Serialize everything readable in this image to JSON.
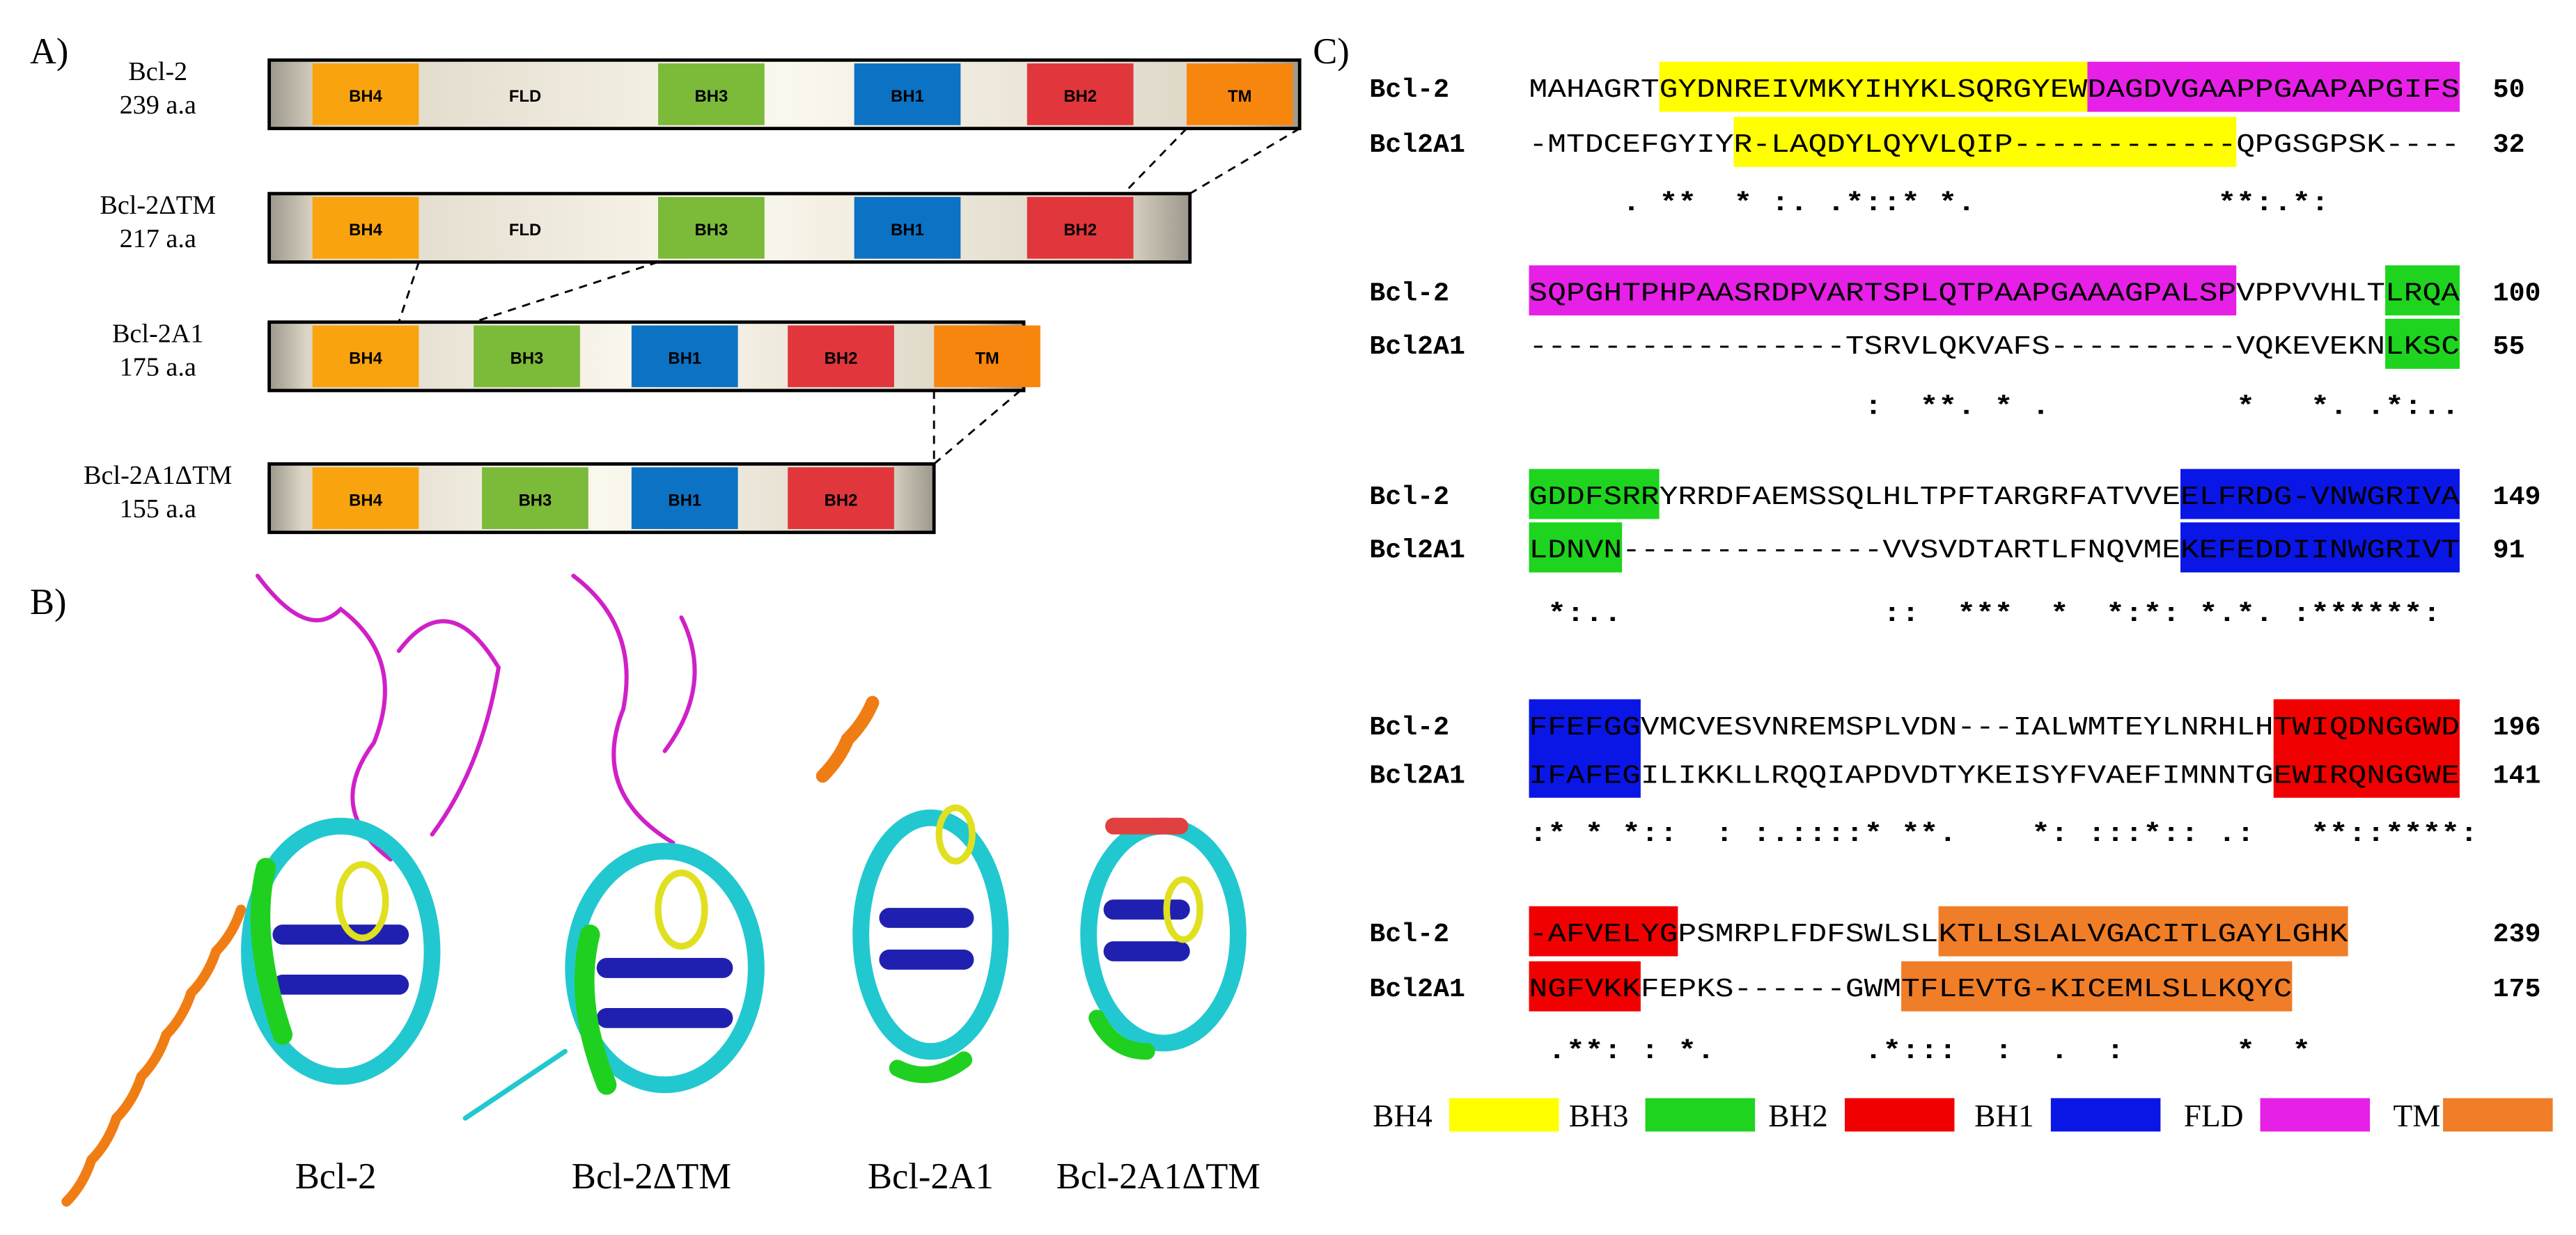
{
  "panel_labels": [
    "A)",
    "B)",
    "C)"
  ],
  "domain_maps": [
    {
      "name": "Bcl-2",
      "length": "239 a.a",
      "domains": [
        "BH4",
        "FLD",
        "BH3",
        "BH1",
        "BH2",
        "TM"
      ]
    },
    {
      "name": "Bcl-2ΔTM",
      "length": "217 a.a",
      "domains": [
        "BH4",
        "FLD",
        "BH3",
        "BH1",
        "BH2"
      ]
    },
    {
      "name": "Bcl-2A1",
      "length": "175 a.a",
      "domains": [
        "BH4",
        "BH3",
        "BH1",
        "BH2",
        "TM"
      ]
    },
    {
      "name": "Bcl-2A1ΔTM",
      "length": "155 a.a",
      "domains": [
        "BH4",
        "BH3",
        "BH1",
        "BH2"
      ]
    }
  ],
  "structures": [
    "Bcl-2",
    "Bcl-2ΔTM",
    "Bcl-2A1",
    "Bcl-2A1ΔTM"
  ],
  "alignment": {
    "blocks": [
      {
        "rows": [
          {
            "name": "Bcl-2",
            "sequence": "MAHAGRTGYDNREIVMKYIHYKLSQRGYEWDAGDVGAAPPGAAPAPGIFS",
            "end": 50
          },
          {
            "name": "Bcl2A1",
            "sequence": "-MTDCEFGYIYR-LAQDYLQYVLQIP------------QPGSGPSK----",
            "end": 32
          }
        ],
        "consensus": "     . **  * :. .*::* *.             **:.*:"
      },
      {
        "rows": [
          {
            "name": "Bcl-2",
            "sequence": "SQPGHTPHPAASRDPVARTSPLQTPAAPGAAAGPALSPVPPVVHLTLRQA",
            "end": 100
          },
          {
            "name": "Bcl2A1",
            "sequence": "-----------------TSRVLQKVAFS----------VQKEVEKNLKSC",
            "end": 55
          }
        ],
        "consensus": "                  :  **. * .          *   *. .*:.."
      },
      {
        "rows": [
          {
            "name": "Bcl-2",
            "sequence": "GDDFSRRYRRDFAEMSSQLHLTPFTARGRFATVVEELFRDG-VNWGRIVA",
            "end": 149
          },
          {
            "name": "Bcl2A1",
            "sequence": "LDNVN--------------VVSVDTARTLFNQVMEKEFEDDIINWGRIVT",
            "end": 91
          }
        ],
        "consensus": " *:..              ::  ***  *  *:*: *.*. :******:"
      },
      {
        "rows": [
          {
            "name": "Bcl-2",
            "sequence": "FFEFGGVMCVESVNREMSPLVDN---IALWMTEYLNRHLHTWIQDNGGWD",
            "end": 196
          },
          {
            "name": "Bcl2A1",
            "sequence": "IFAFEGILIKKLLRQQIAPDVDTYKEISYFVAEFIMNNTGEWIRQNGGWE",
            "end": 141
          }
        ],
        "consensus": ":* * *::  : :.::::* **.    *: :::*:: .:   **::****:"
      },
      {
        "rows": [
          {
            "name": "Bcl-2",
            "sequence": "-AFVELYGPSMRPLFDFSWLSLKTLLSLALVGACITLGAYLGHK",
            "end": 239
          },
          {
            "name": "Bcl2A1",
            "sequence": "NGFVKKFEPKS------GWMTFLEVTG-KICEMLSLLKQYC",
            "end": 175
          }
        ],
        "consensus": " .**: : *.        .*:::  :  .  :      *  *"
      }
    ]
  },
  "legend": [
    "BH4",
    "BH3",
    "BH2",
    "BH1",
    "FLD",
    "TM"
  ]
}
